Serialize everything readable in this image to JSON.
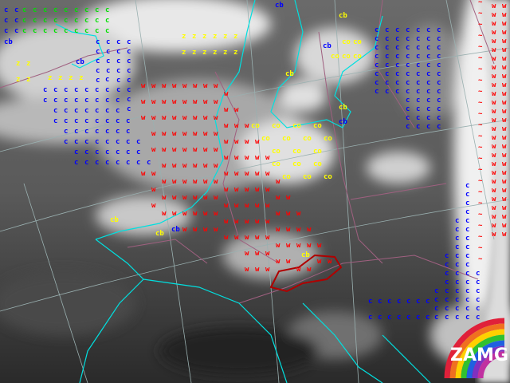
{
  "map": {
    "type": "satellite infrared image with weather-parameter symbol overlay",
    "colors": {
      "coastline": "#00e0e0",
      "borders": "#a06080",
      "austria_outline": "#b00000",
      "graticule": "#9ab0b0"
    },
    "symbols": {
      "c": {
        "text": "c",
        "color": "#0000ff"
      },
      "cg": {
        "text": "c",
        "color": "#00e000"
      },
      "w": {
        "text": "w",
        "color": "#ff0000"
      },
      "z": {
        "text": "z",
        "color": "#ffff00"
      },
      "co": {
        "text": "co",
        "color": "#ffff00"
      },
      "tilde": {
        "text": "~",
        "color": "#ff0000"
      },
      "cb_blue": {
        "text": "cb",
        "color": "#0000ff"
      },
      "cb_yellow": {
        "text": "cb",
        "color": "#ffff00"
      }
    }
  },
  "logo": {
    "text": "ZAMG",
    "rainbow": [
      "#e0203a",
      "#f07020",
      "#ffd000",
      "#30c030",
      "#2060e0",
      "#8030c0",
      "#c030a0"
    ]
  }
}
